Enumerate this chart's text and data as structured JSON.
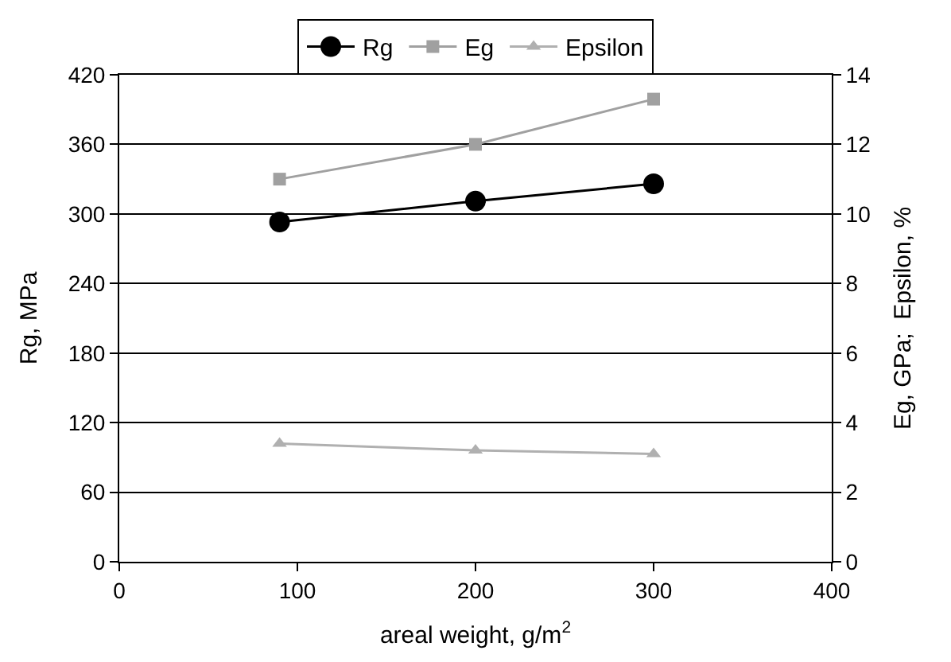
{
  "chart_data": {
    "type": "line",
    "xlabel": "areal weight, g/m$^{2}$",
    "ylabel": "Rg, MPa",
    "y2label": "Eg, GPa;  Epsilon, %",
    "x": [
      90,
      200,
      300
    ],
    "series": [
      {
        "name": "Rg",
        "color": "#000000",
        "values": [
          293,
          311,
          326
        ],
        "marker": "circle"
      },
      {
        "name": "Eg",
        "color": "#a0a0a0",
        "values": [
          11.0,
          12.0,
          13.3
        ],
        "marker": "square",
        "axis": "y2"
      },
      {
        "name": "Epsilon",
        "color": "#b0b0b0",
        "values": [
          3.4,
          3.2,
          3.1
        ],
        "marker": "triangle",
        "axis": "y2"
      }
    ],
    "xlim": [
      0,
      400
    ],
    "xticks": [
      0,
      100,
      200,
      300,
      400
    ],
    "ylim": [
      0,
      420
    ],
    "yticks": [
      0,
      60,
      120,
      180,
      240,
      300,
      360,
      420
    ],
    "y2lim": [
      0,
      14
    ],
    "y2ticks": [
      0,
      2,
      4,
      6,
      8,
      10,
      12,
      14
    ],
    "grid": "y",
    "legend": "top"
  }
}
